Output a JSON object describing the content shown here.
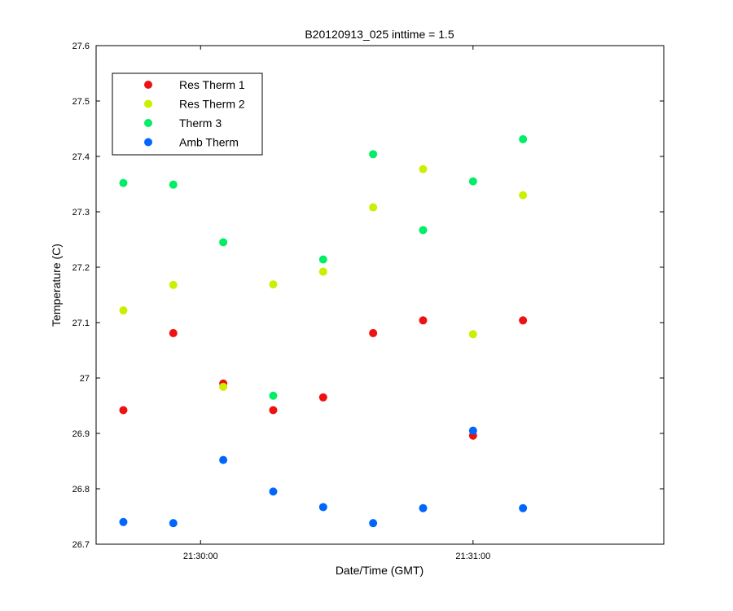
{
  "chart_data": {
    "type": "scatter",
    "title": "B20120913_025 inttime = 1.5",
    "xlabel": "Date/Time (GMT)",
    "ylabel": "Temperature (C)",
    "x_axis": {
      "kind": "time",
      "range": [
        "21:29:37",
        "21:31:42"
      ],
      "ticks": [
        "21:30:00",
        "21:31:00"
      ]
    },
    "ylim": [
      26.7,
      27.6
    ],
    "yticks": [
      26.7,
      26.8,
      26.9,
      27,
      27.1,
      27.2,
      27.3,
      27.4,
      27.5,
      27.6
    ],
    "grid": false,
    "legend_position": "top-left",
    "x": [
      "21:29:43",
      "21:29:54",
      "21:30:05",
      "21:30:16",
      "21:30:27",
      "21:30:38",
      "21:30:49",
      "21:31:00",
      "21:31:11"
    ],
    "series": [
      {
        "name": "Res Therm 1",
        "color": "#ee1111",
        "values": [
          26.942,
          27.081,
          26.99,
          26.942,
          26.965,
          27.081,
          27.104,
          26.896,
          27.104
        ]
      },
      {
        "name": "Res Therm 2",
        "color": "#ccee00",
        "values": [
          27.122,
          27.168,
          26.984,
          27.169,
          27.192,
          27.308,
          27.377,
          27.079,
          27.33
        ]
      },
      {
        "name": "Therm 3",
        "color": "#00ee66",
        "values": [
          27.352,
          27.349,
          27.245,
          26.968,
          27.214,
          27.404,
          27.267,
          27.355,
          27.431
        ]
      },
      {
        "name": "Amb Therm",
        "color": "#0066ff",
        "values": [
          26.74,
          26.738,
          26.852,
          26.795,
          26.767,
          26.738,
          26.765,
          26.905,
          26.765
        ]
      }
    ]
  }
}
